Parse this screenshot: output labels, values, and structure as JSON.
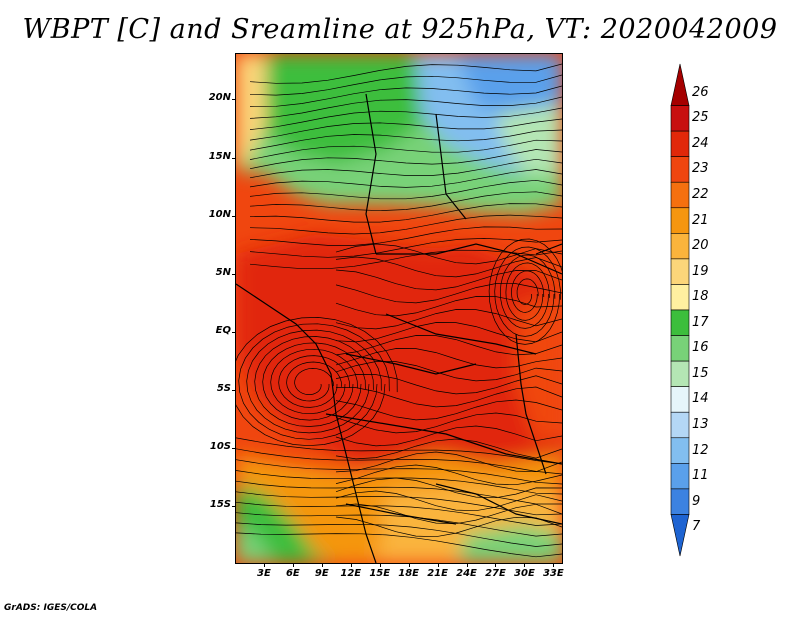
{
  "title": "WBPT [C] and Sreamline at 925hPa, VT: 2020042009",
  "credit": "GrADS: IGES/COLA",
  "map": {
    "variable": "Wet-bulb potential temperature",
    "level": "925hPa",
    "valid_time": "2020042009",
    "lat_range": [
      -20,
      24
    ],
    "lon_range": [
      0,
      34
    ],
    "y_ticks": [
      {
        "label": "20N",
        "lat": 20
      },
      {
        "label": "15N",
        "lat": 15
      },
      {
        "label": "10N",
        "lat": 10
      },
      {
        "label": "5N",
        "lat": 5
      },
      {
        "label": "EQ",
        "lat": 0
      },
      {
        "label": "5S",
        "lat": -5
      },
      {
        "label": "10S",
        "lat": -10
      },
      {
        "label": "15S",
        "lat": -15
      }
    ],
    "x_ticks": [
      {
        "label": "3E",
        "lon": 3
      },
      {
        "label": "6E",
        "lon": 6
      },
      {
        "label": "9E",
        "lon": 9
      },
      {
        "label": "12E",
        "lon": 12
      },
      {
        "label": "15E",
        "lon": 15
      },
      {
        "label": "18E",
        "lon": 18
      },
      {
        "label": "21E",
        "lon": 21
      },
      {
        "label": "24E",
        "lon": 24
      },
      {
        "label": "27E",
        "lon": 27
      },
      {
        "label": "30E",
        "lon": 30
      },
      {
        "label": "33E",
        "lon": 33
      }
    ]
  },
  "colorbar": {
    "labels": [
      "26",
      "25",
      "24",
      "23",
      "22",
      "21",
      "20",
      "19",
      "18",
      "17",
      "16",
      "15",
      "14",
      "13",
      "12",
      "11",
      "9",
      "7"
    ],
    "colors": [
      "#a50000",
      "#c80f0f",
      "#e1280a",
      "#f0460f",
      "#f5700f",
      "#f5960f",
      "#fab43c",
      "#fcd67a",
      "#fff0a0",
      "#3cbe3c",
      "#78d278",
      "#b4e6b4",
      "#e6f5fa",
      "#b4d7f5",
      "#82bef0",
      "#5aa0eb",
      "#3c82e1",
      "#1e64d2"
    ]
  }
}
